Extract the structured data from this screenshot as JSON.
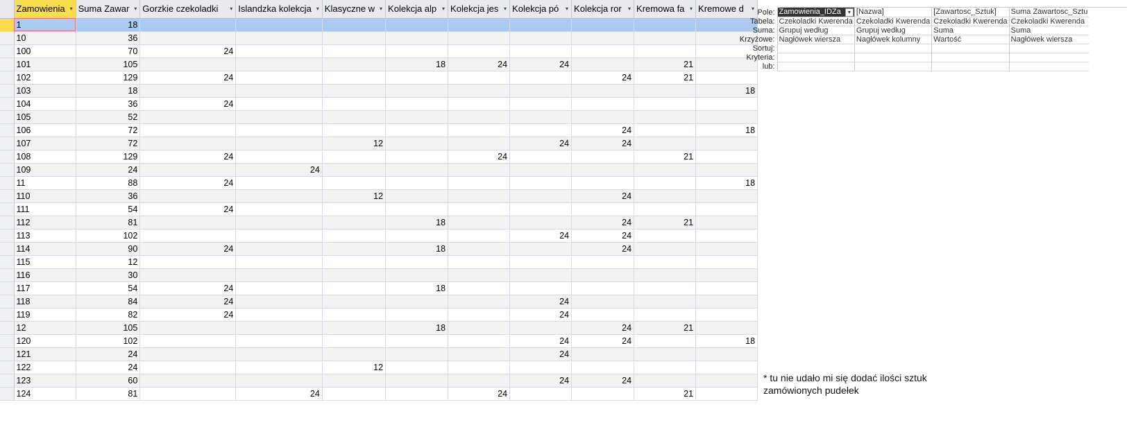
{
  "datasheet": {
    "columns": [
      "Zamowienia",
      "Suma Zawar",
      "Gorzkie czekoladki",
      "Islandzka kolekcja",
      "Klasyczne w",
      "Kolekcja alp",
      "Kolekcja jes",
      "Kolekcja pó",
      "Kolekcja ror",
      "Kremowa fa",
      "Kremowe d"
    ],
    "rows": [
      [
        "1",
        "18",
        "",
        "",
        "",
        "",
        "",
        "",
        "",
        "",
        ""
      ],
      [
        "10",
        "36",
        "",
        "",
        "",
        "",
        "",
        "",
        "",
        "",
        ""
      ],
      [
        "100",
        "70",
        "24",
        "",
        "",
        "",
        "",
        "",
        "",
        "",
        ""
      ],
      [
        "101",
        "105",
        "",
        "",
        "",
        "18",
        "24",
        "24",
        "",
        "21",
        ""
      ],
      [
        "102",
        "129",
        "24",
        "",
        "",
        "",
        "",
        "",
        "24",
        "21",
        ""
      ],
      [
        "103",
        "18",
        "",
        "",
        "",
        "",
        "",
        "",
        "",
        "",
        "18"
      ],
      [
        "104",
        "36",
        "24",
        "",
        "",
        "",
        "",
        "",
        "",
        "",
        ""
      ],
      [
        "105",
        "52",
        "",
        "",
        "",
        "",
        "",
        "",
        "",
        "",
        ""
      ],
      [
        "106",
        "72",
        "",
        "",
        "",
        "",
        "",
        "",
        "24",
        "",
        "18"
      ],
      [
        "107",
        "72",
        "",
        "",
        "12",
        "",
        "",
        "24",
        "24",
        "",
        ""
      ],
      [
        "108",
        "129",
        "24",
        "",
        "",
        "",
        "24",
        "",
        "",
        "21",
        ""
      ],
      [
        "109",
        "24",
        "",
        "24",
        "",
        "",
        "",
        "",
        "",
        "",
        ""
      ],
      [
        "11",
        "88",
        "24",
        "",
        "",
        "",
        "",
        "",
        "",
        "",
        "18"
      ],
      [
        "110",
        "36",
        "",
        "",
        "12",
        "",
        "",
        "",
        "24",
        "",
        ""
      ],
      [
        "111",
        "54",
        "24",
        "",
        "",
        "",
        "",
        "",
        "",
        "",
        ""
      ],
      [
        "112",
        "81",
        "",
        "",
        "",
        "18",
        "",
        "",
        "24",
        "21",
        ""
      ],
      [
        "113",
        "102",
        "",
        "",
        "",
        "",
        "",
        "24",
        "24",
        "",
        ""
      ],
      [
        "114",
        "90",
        "24",
        "",
        "",
        "18",
        "",
        "",
        "24",
        "",
        ""
      ],
      [
        "115",
        "12",
        "",
        "",
        "",
        "",
        "",
        "",
        "",
        "",
        ""
      ],
      [
        "116",
        "30",
        "",
        "",
        "",
        "",
        "",
        "",
        "",
        "",
        ""
      ],
      [
        "117",
        "54",
        "24",
        "",
        "",
        "18",
        "",
        "",
        "",
        "",
        ""
      ],
      [
        "118",
        "84",
        "24",
        "",
        "",
        "",
        "",
        "24",
        "",
        "",
        ""
      ],
      [
        "119",
        "82",
        "24",
        "",
        "",
        "",
        "",
        "24",
        "",
        "",
        ""
      ],
      [
        "12",
        "105",
        "",
        "",
        "",
        "18",
        "",
        "",
        "24",
        "21",
        ""
      ],
      [
        "120",
        "102",
        "",
        "",
        "",
        "",
        "",
        "24",
        "24",
        "",
        "18"
      ],
      [
        "121",
        "24",
        "",
        "",
        "",
        "",
        "",
        "24",
        "",
        "",
        ""
      ],
      [
        "122",
        "24",
        "",
        "",
        "12",
        "",
        "",
        "",
        "",
        "",
        ""
      ],
      [
        "123",
        "60",
        "",
        "",
        "",
        "",
        "",
        "24",
        "24",
        "",
        ""
      ],
      [
        "124",
        "81",
        "",
        "24",
        "",
        "",
        "24",
        "",
        "",
        "21",
        ""
      ]
    ]
  },
  "query_grid": {
    "row_labels": [
      "Pole:",
      "Tabela:",
      "Suma:",
      "Krzyżowe:",
      "Sortuj:",
      "Kryteria:",
      "lub:"
    ],
    "fields": [
      [
        "Zamowienia_IDZa",
        "Czekoladki Kwerenda",
        "Grupuj według",
        "Nagłówek wiersza",
        "",
        "",
        ""
      ],
      [
        "[Nazwa]",
        "Czekoladki Kwerenda",
        "Grupuj według",
        "Nagłówek kolumny",
        "",
        "",
        ""
      ],
      [
        "[Zawartosc_Sztuk]",
        "Czekoladki Kwerenda",
        "Suma",
        "Wartość",
        "",
        "",
        ""
      ],
      [
        "Suma Zawartosc_Sztu",
        "Czekoladki Kwerenda",
        "Suma",
        "Nagłówek wiersza",
        "",
        "",
        ""
      ]
    ]
  },
  "note": "* tu nie udało mi się dodać ilości sztuk zamówionych pudełek",
  "icons": {
    "dropdown": "chevron-down-icon"
  }
}
